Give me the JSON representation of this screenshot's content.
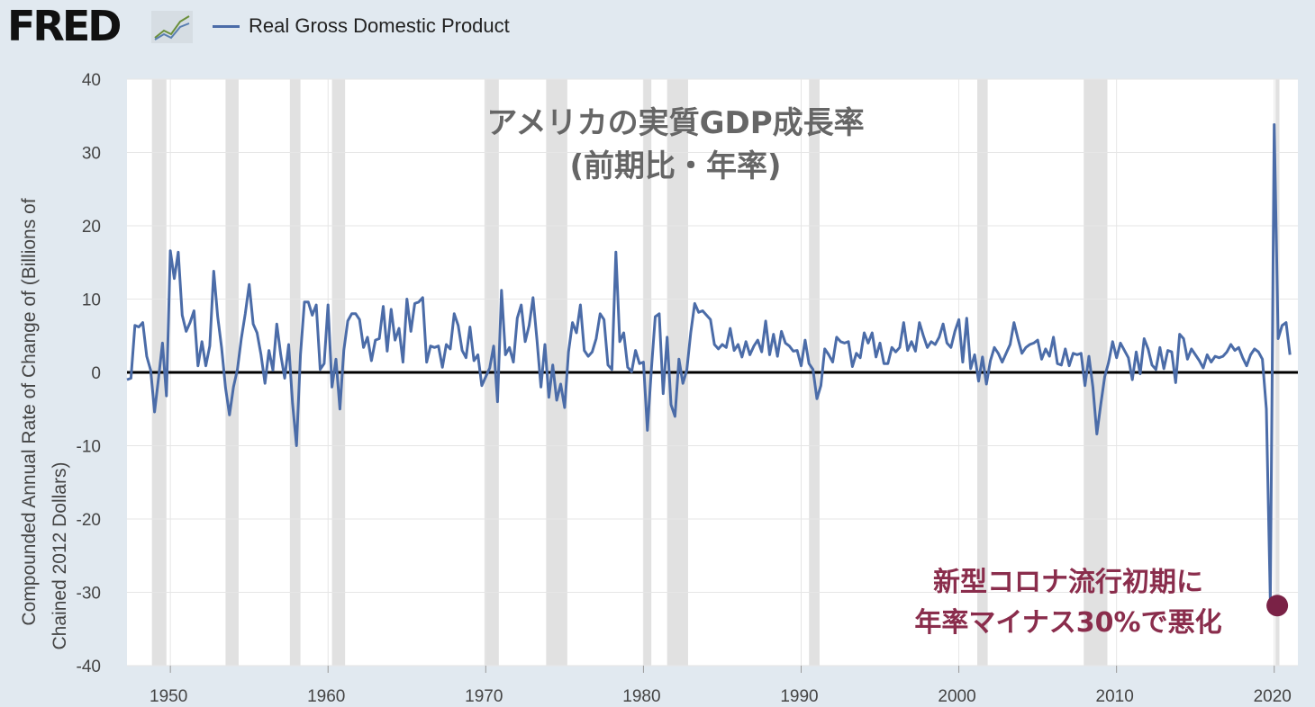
{
  "header": {
    "logo_text": "FRED",
    "logo_icon": "chart-line-icon",
    "legend_label": "Real Gross Domestic Product",
    "legend_color": "#4b6ca8"
  },
  "chart_data": {
    "type": "line",
    "title": "アメリカの実質GDP成長率",
    "subtitle": "(前期比・年率)",
    "ylabel_line1": "Compounded Annual Rate of Change of (Billions of",
    "ylabel_line2": "Chained 2012 Dollars)",
    "ylim": [
      -40,
      40
    ],
    "xlim": [
      1947.25,
      2021.5
    ],
    "yticks": [
      40,
      30,
      20,
      10,
      0,
      -10,
      -20,
      -30,
      -40
    ],
    "xticks": [
      1950,
      1960,
      1970,
      1980,
      1990,
      2000,
      2010,
      2020
    ],
    "grid": true,
    "zero_line": true,
    "series_color": "#4b6ca8",
    "recessions": [
      [
        1948.83,
        1949.75
      ],
      [
        1953.5,
        1954.33
      ],
      [
        1957.58,
        1958.25
      ],
      [
        1960.25,
        1961.08
      ],
      [
        1969.92,
        1970.83
      ],
      [
        1973.83,
        1975.17
      ],
      [
        1980.0,
        1980.5
      ],
      [
        1981.5,
        1982.83
      ],
      [
        1990.5,
        1991.17
      ],
      [
        2001.17,
        2001.83
      ],
      [
        2007.92,
        2009.42
      ],
      [
        2020.08,
        2020.33
      ]
    ],
    "series": [
      {
        "name": "Real Gross Domestic Product",
        "x_start": 1947.25,
        "x_step": 0.25,
        "values": [
          -1.0,
          -0.8,
          6.4,
          6.2,
          6.8,
          2.2,
          0.3,
          -5.4,
          -0.8,
          4.0,
          -3.2,
          16.6,
          12.8,
          16.4,
          7.8,
          5.6,
          6.8,
          8.4,
          0.9,
          4.2,
          0.9,
          3.6,
          13.8,
          7.6,
          3.3,
          -2.1,
          -5.8,
          -2.0,
          0.4,
          4.6,
          8.0,
          12.0,
          6.6,
          5.4,
          2.4,
          -1.5,
          3.0,
          0.3,
          6.6,
          2.4,
          -0.8,
          3.8,
          -4.2,
          -10.0,
          2.4,
          9.6,
          9.6,
          7.8,
          9.2,
          0.4,
          1.2,
          9.2,
          -2.0,
          1.8,
          -5.0,
          3.0,
          7.0,
          8.0,
          8.0,
          7.2,
          3.4,
          4.8,
          1.6,
          4.4,
          4.6,
          9.0,
          2.9,
          8.6,
          4.4,
          6.0,
          1.4,
          10.0,
          5.6,
          9.4,
          9.6,
          10.2,
          1.4,
          3.6,
          3.4,
          3.6,
          0.7,
          3.8,
          3.2,
          8.0,
          6.4,
          3.0,
          2.0,
          6.2,
          1.6,
          2.4,
          -1.8,
          -0.6,
          0.6,
          3.6,
          -4.0,
          11.2,
          2.4,
          3.4,
          1.4,
          7.4,
          9.2,
          4.2,
          6.4,
          10.2,
          4.4,
          -2.0,
          3.8,
          -3.4,
          1.0,
          -3.8,
          -1.6,
          -4.8,
          2.8,
          6.8,
          5.4,
          9.2,
          3.0,
          2.2,
          2.8,
          4.6,
          8.0,
          7.2,
          1.0,
          0.4,
          16.4,
          4.2,
          5.4,
          0.7,
          0.1,
          3.0,
          1.2,
          1.4,
          -7.9,
          0.4,
          7.6,
          8.0,
          -2.9,
          4.8,
          -4.4,
          -6.0,
          1.8,
          -1.5,
          0.3,
          5.4,
          9.4,
          8.2,
          8.4,
          7.8,
          7.2,
          3.8,
          3.2,
          3.8,
          3.4,
          6.0,
          3.0,
          3.8,
          2.1,
          4.2,
          2.4,
          3.6,
          4.4,
          2.8,
          7.0,
          2.4,
          5.2,
          2.2,
          5.6,
          4.0,
          3.6,
          2.9,
          3.0,
          0.9,
          4.4,
          1.2,
          0.4,
          -3.6,
          -1.8,
          3.2,
          2.4,
          1.4,
          4.8,
          4.2,
          4.0,
          4.2,
          0.8,
          2.6,
          2.0,
          5.4,
          4.0,
          5.4,
          2.1,
          4.0,
          1.2,
          1.2,
          3.4,
          2.8,
          3.4,
          6.8,
          3.0,
          4.2,
          2.9,
          6.8,
          5.0,
          3.4,
          4.2,
          3.8,
          4.8,
          6.6,
          4.0,
          3.4,
          5.6,
          7.2,
          1.4,
          7.4,
          0.5,
          2.4,
          -1.2,
          2.1,
          -1.6,
          1.6,
          3.4,
          2.6,
          1.4,
          2.6,
          3.8,
          6.8,
          4.6,
          2.6,
          3.4,
          3.8,
          4.0,
          4.4,
          1.8,
          3.2,
          2.2,
          4.8,
          1.2,
          1.0,
          3.2,
          0.9,
          2.6,
          2.4,
          2.6,
          -1.8,
          2.2,
          -2.0,
          -8.4,
          -4.4,
          -0.6,
          1.4,
          4.2,
          2.0,
          4.0,
          3.0,
          2.0,
          -1.0,
          2.8,
          -0.2,
          4.6,
          3.2,
          1.0,
          0.4,
          3.4,
          0.5,
          3.0,
          2.8,
          -1.4,
          5.2,
          4.6,
          1.8,
          3.2,
          2.4,
          1.6,
          0.6,
          2.4,
          1.4,
          2.2,
          2.0,
          2.2,
          2.8,
          3.8,
          3.0,
          3.4,
          2.0,
          0.9,
          2.4,
          3.2,
          2.8,
          1.8,
          -5.0,
          -31.2,
          33.8,
          4.6,
          6.4,
          6.8,
          2.4
        ]
      }
    ],
    "annotation": {
      "line1": "新型コロナ流行初期に",
      "line2": "年率マイナス30%で悪化",
      "point_x": 2020.25,
      "point_y": -31.2,
      "color": "#7a2246"
    }
  }
}
